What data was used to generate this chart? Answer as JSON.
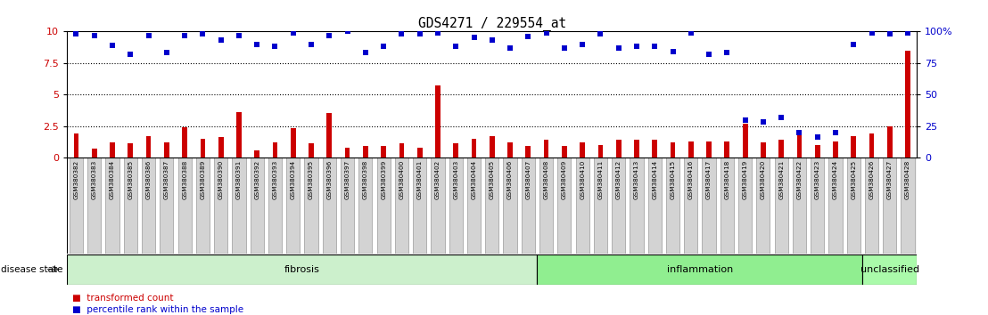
{
  "title": "GDS4271 / 229554_at",
  "samples": [
    "GSM380382",
    "GSM380383",
    "GSM380384",
    "GSM380385",
    "GSM380386",
    "GSM380387",
    "GSM380388",
    "GSM380389",
    "GSM380390",
    "GSM380391",
    "GSM380392",
    "GSM380393",
    "GSM380394",
    "GSM380395",
    "GSM380396",
    "GSM380397",
    "GSM380398",
    "GSM380399",
    "GSM380400",
    "GSM380401",
    "GSM380402",
    "GSM380403",
    "GSM380404",
    "GSM380405",
    "GSM380406",
    "GSM380407",
    "GSM380408",
    "GSM380409",
    "GSM380410",
    "GSM380411",
    "GSM380412",
    "GSM380413",
    "GSM380414",
    "GSM380415",
    "GSM380416",
    "GSM380417",
    "GSM380418",
    "GSM380419",
    "GSM380420",
    "GSM380421",
    "GSM380422",
    "GSM380423",
    "GSM380424",
    "GSM380425",
    "GSM380426",
    "GSM380427",
    "GSM380428"
  ],
  "transformed_count": [
    1.9,
    0.7,
    1.2,
    1.1,
    1.7,
    1.2,
    2.4,
    1.5,
    1.6,
    3.6,
    0.6,
    1.2,
    2.3,
    1.1,
    3.5,
    0.8,
    0.9,
    0.9,
    1.1,
    0.8,
    5.7,
    1.1,
    1.5,
    1.7,
    1.2,
    0.9,
    1.4,
    0.9,
    1.2,
    1.0,
    1.4,
    1.4,
    1.4,
    1.2,
    1.3,
    1.3,
    1.3,
    2.7,
    1.2,
    1.4,
    1.9,
    1.0,
    1.3,
    1.7,
    1.9,
    2.5,
    8.5
  ],
  "percentile_rank": [
    9.8,
    9.7,
    8.9,
    8.2,
    9.7,
    8.3,
    9.7,
    9.8,
    9.3,
    9.7,
    9.0,
    8.8,
    9.9,
    9.0,
    9.7,
    10.0,
    8.3,
    8.8,
    9.8,
    9.8,
    9.9,
    8.8,
    9.5,
    9.3,
    8.7,
    9.6,
    9.9,
    8.7,
    9.0,
    9.8,
    8.7,
    8.8,
    8.8,
    8.4,
    9.9,
    8.2,
    8.3,
    3.0,
    2.8,
    3.2,
    2.0,
    1.6,
    2.0,
    9.0,
    9.9,
    9.8,
    9.9
  ],
  "groups": [
    {
      "label": "fibrosis",
      "start": 0,
      "end": 25,
      "color": "#ccf0cc"
    },
    {
      "label": "inflammation",
      "start": 26,
      "end": 43,
      "color": "#90ee90"
    },
    {
      "label": "unclassified",
      "start": 44,
      "end": 46,
      "color": "#aafaaa"
    }
  ],
  "bar_color": "#cc0000",
  "dot_color": "#0000cc",
  "label_bg": "#d3d3d3",
  "label_border": "#999999",
  "yticks_left": [
    0,
    2.5,
    5,
    7.5,
    10
  ],
  "yticks_right_vals": [
    0,
    25,
    50,
    75,
    100
  ],
  "yticks_right_labels": [
    "0",
    "25",
    "50",
    "75",
    "100%"
  ],
  "dotted_lines": [
    2.5,
    5.0,
    7.5
  ],
  "disease_state_label": "disease state",
  "legend": [
    "transformed count",
    "percentile rank within the sample"
  ]
}
